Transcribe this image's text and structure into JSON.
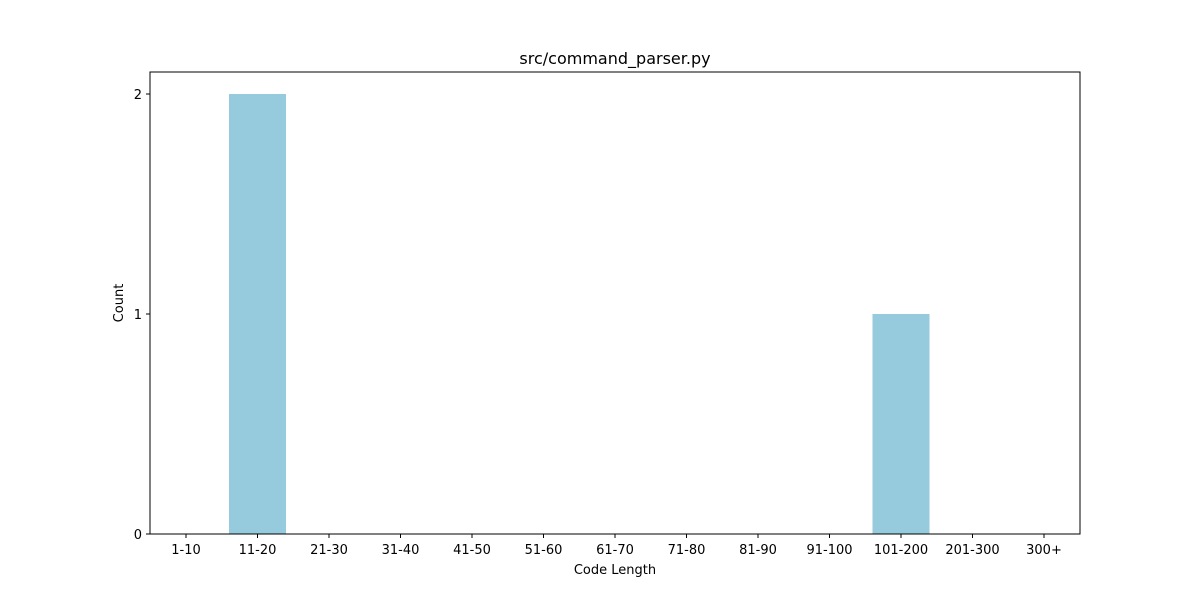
{
  "chart_data": {
    "type": "bar",
    "title": "src/command_parser.py",
    "xlabel": "Code Length",
    "ylabel": "Count",
    "categories": [
      "1-10",
      "11-20",
      "21-30",
      "31-40",
      "41-50",
      "51-60",
      "61-70",
      "71-80",
      "81-90",
      "91-100",
      "101-200",
      "201-300",
      "300+"
    ],
    "values": [
      0,
      2,
      0,
      0,
      0,
      0,
      0,
      0,
      0,
      0,
      1,
      0,
      0
    ],
    "ylim": [
      0,
      2.1
    ],
    "yticks": [
      0,
      1,
      2
    ],
    "bar_color": "#96cadd",
    "grid": false,
    "legend": "none"
  }
}
